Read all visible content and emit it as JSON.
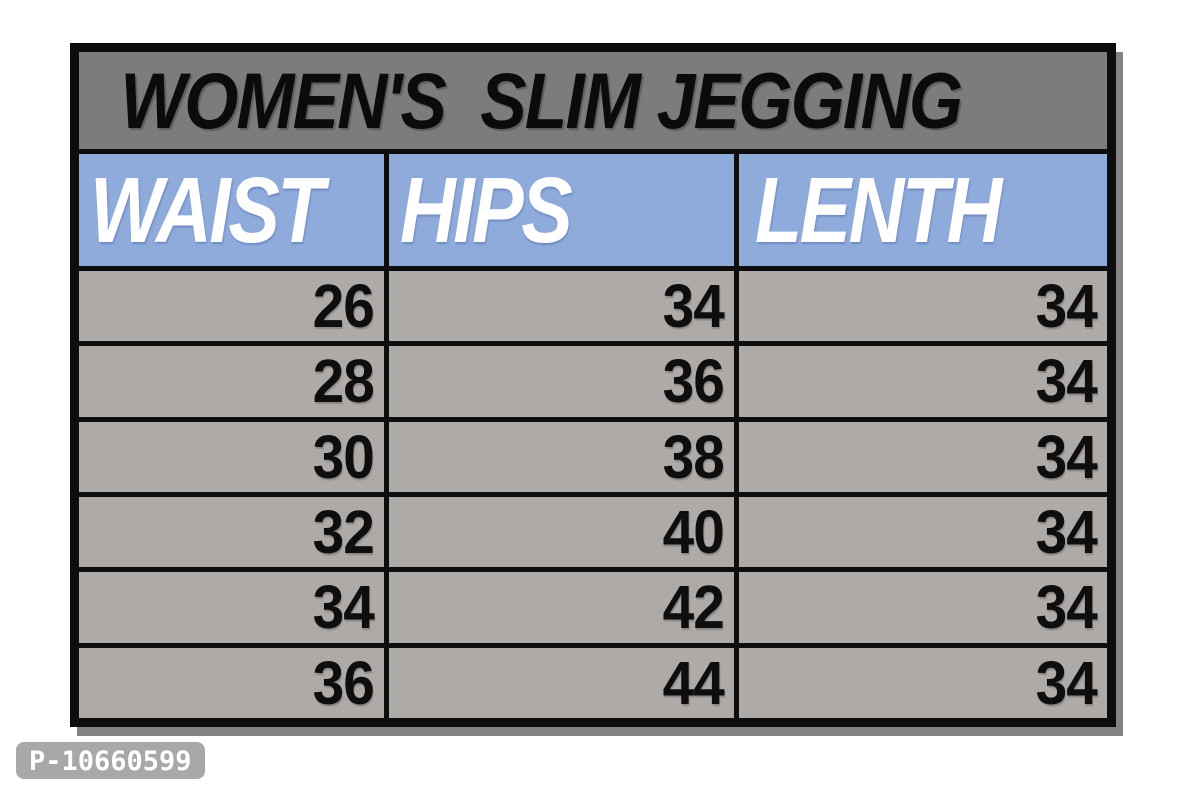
{
  "chart_data": {
    "type": "table",
    "title": "WOMEN'S  SLIM JEGGING",
    "columns": [
      "WAIST",
      "HIPS",
      "LENTH"
    ],
    "rows": [
      [
        "26",
        "34",
        "34"
      ],
      [
        "28",
        "36",
        "34"
      ],
      [
        "30",
        "38",
        "34"
      ],
      [
        "32",
        "40",
        "34"
      ],
      [
        "34",
        "42",
        "34"
      ],
      [
        "36",
        "44",
        "34"
      ]
    ],
    "layout_hints": {
      "title_position": "top, centered, spans all columns",
      "header_align": "left",
      "data_align": "right",
      "grid": "thin black lines between all cells, thick black outer frame"
    }
  },
  "watermark": {
    "label": "P-10660599"
  },
  "colors": {
    "page_background": "#ffffff",
    "title_bar_background": "#7c7c7c",
    "title_text": "#0b0b0b",
    "header_background": "#8fabdc",
    "header_text": "#ffffff",
    "row_background": "#aeaaa8",
    "row_text": "#0e0e0e",
    "grid_border": "#0d0d0d",
    "watermark_background": "#a8a8a8",
    "watermark_text": "#ffffff"
  }
}
